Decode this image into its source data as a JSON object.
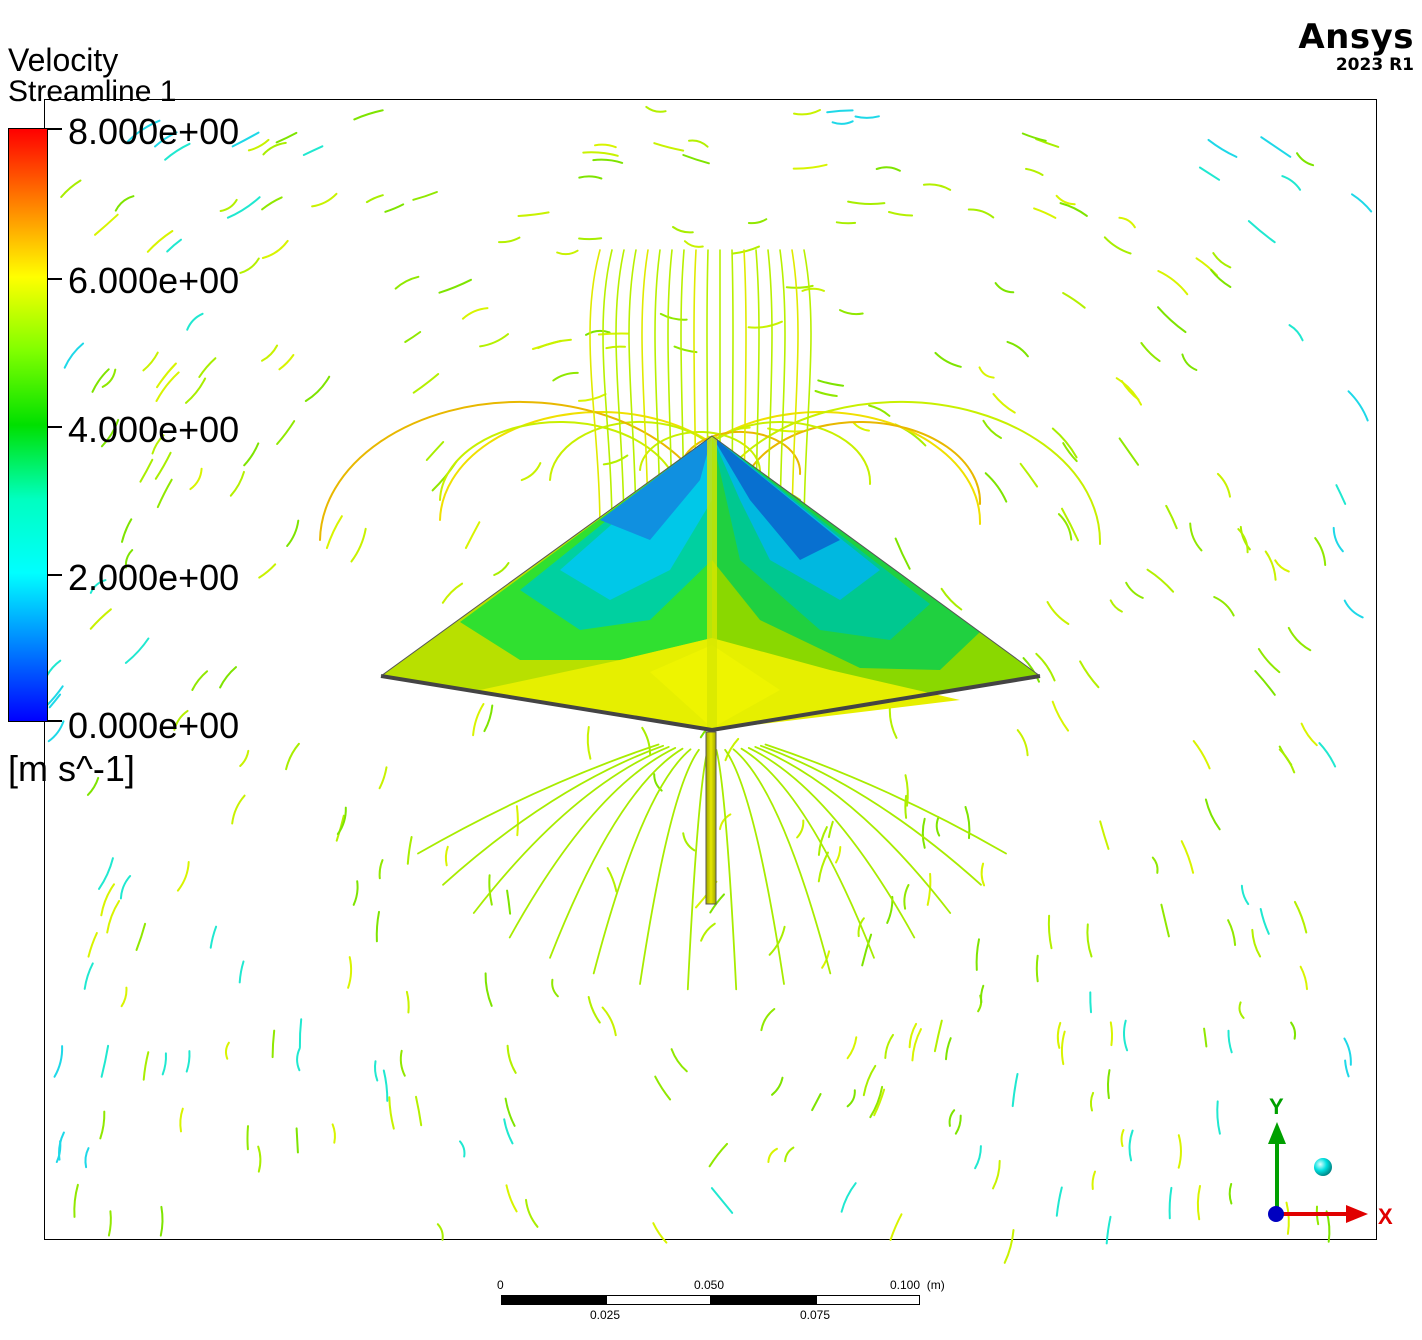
{
  "legend": {
    "title": "Velocity",
    "subtitle": "Streamline 1",
    "ticks": [
      "8.000e+00",
      "6.000e+00",
      "4.000e+00",
      "2.000e+00",
      "0.000e+00"
    ],
    "unit": "[m s^-1]",
    "colors": [
      "#ff0000",
      "#ff8000",
      "#ffff00",
      "#80ff00",
      "#00e000",
      "#00ffc0",
      "#00ffff",
      "#0080ff",
      "#0000ff"
    ]
  },
  "brand": {
    "name": "Ansys",
    "version": "2023 R1"
  },
  "axes": {
    "y_label": "Y",
    "x_label": "X",
    "y_color": "#00a000",
    "x_color": "#e00000",
    "z_color": "#0000c0"
  },
  "scale_bar": {
    "top_labels": [
      "0",
      "0.050",
      "0.100  (m)"
    ],
    "bottom_labels": [
      "0.025",
      "0.075"
    ]
  }
}
